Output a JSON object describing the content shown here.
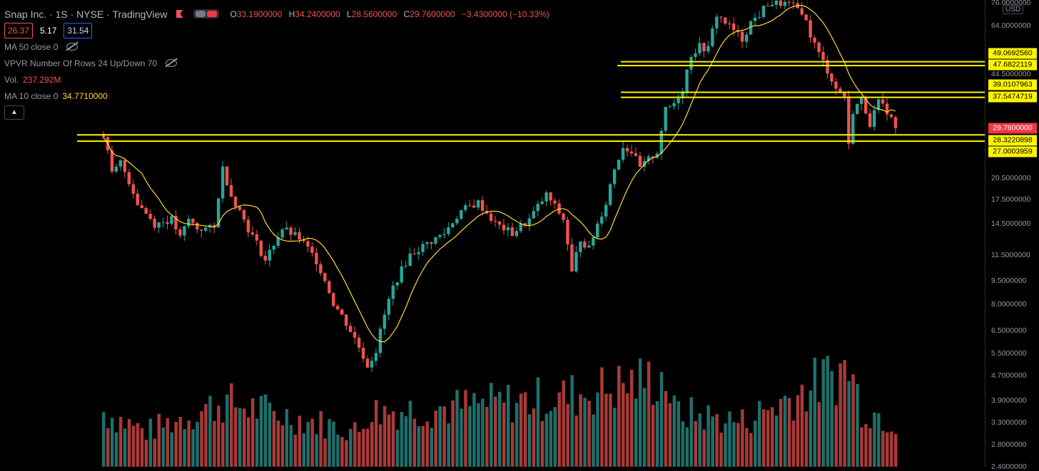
{
  "header": {
    "title": "Snap Inc. · 1S · NYSE · TradingView",
    "ohlc": {
      "o_label": "O",
      "o_value": "33.1900000",
      "h_label": "H",
      "h_value": "34.2400000",
      "l_label": "L",
      "l_value": "28.5600000",
      "c_label": "C",
      "c_value": "29.7600000",
      "change": "−3.4300000 (−10.33%)"
    }
  },
  "trade": {
    "sell": "26.37",
    "spread": "5.17",
    "buy": "31.54"
  },
  "indicators": {
    "ma50": "MA 50 close 0",
    "vpvr": "VPVR Number Of Rows 24 Up/Down 70",
    "vol_label": "Vol.",
    "vol_value": "237.292M",
    "ma10_label": "MA 10 close 0",
    "ma10_value": "34.7710000",
    "collapse_icon": "chevron-up-icon"
  },
  "axis": {
    "currency": "USD",
    "ticks": [
      "76.0000000",
      "64.0000000",
      "44.5000000",
      "20.5000000",
      "17.5000000",
      "14.5000000",
      "11.5000000",
      "9.5000000",
      "8.0000000",
      "6.5000000",
      "5.5000000",
      "4.7000000",
      "3.9000000",
      "3.3000000",
      "2.8000000",
      "2.4000000"
    ],
    "price_labels": [
      "49.0692560",
      "47.6822119",
      "39.0107963",
      "37.5474719",
      "29.7600000",
      "28.3220898",
      "27.0003959"
    ]
  },
  "colors": {
    "up": "#26a69a",
    "down": "#ef5350",
    "ma": "#fdd835",
    "level": "#fdf400",
    "background": "#000000"
  },
  "chart_data": {
    "type": "candlestick",
    "scale": "log",
    "y_range": [
      2.4,
      76
    ],
    "last_close": 29.76,
    "support_resistance": [
      49.069256,
      47.6822119,
      39.0107963,
      37.5474719,
      28.3220898,
      27.0003959
    ],
    "price_path": [
      [
        0,
        28.5
      ],
      [
        2,
        21
      ],
      [
        4,
        23
      ],
      [
        8,
        17
      ],
      [
        12,
        14.5
      ],
      [
        16,
        15
      ],
      [
        18,
        13
      ],
      [
        20,
        15
      ],
      [
        22,
        14
      ],
      [
        26,
        14
      ],
      [
        28,
        22
      ],
      [
        30,
        18
      ],
      [
        34,
        14
      ],
      [
        38,
        11
      ],
      [
        42,
        14
      ],
      [
        46,
        13
      ],
      [
        50,
        11
      ],
      [
        54,
        8
      ],
      [
        58,
        6.5
      ],
      [
        62,
        5
      ],
      [
        64,
        5.6
      ],
      [
        68,
        9
      ],
      [
        72,
        11.5
      ],
      [
        76,
        12.5
      ],
      [
        80,
        13.5
      ],
      [
        84,
        16
      ],
      [
        88,
        17
      ],
      [
        92,
        14.5
      ],
      [
        96,
        13.5
      ],
      [
        100,
        15
      ],
      [
        104,
        18
      ],
      [
        108,
        15
      ],
      [
        110,
        10
      ],
      [
        112,
        13
      ],
      [
        114,
        12
      ],
      [
        118,
        17
      ],
      [
        120,
        22
      ],
      [
        122,
        26
      ],
      [
        124,
        25
      ],
      [
        126,
        22
      ],
      [
        130,
        25
      ],
      [
        132,
        34
      ],
      [
        134,
        36
      ],
      [
        136,
        40
      ],
      [
        138,
        52
      ],
      [
        140,
        55
      ],
      [
        142,
        54
      ],
      [
        144,
        70
      ],
      [
        148,
        62
      ],
      [
        150,
        58
      ],
      [
        152,
        66
      ],
      [
        154,
        70
      ],
      [
        156,
        76
      ],
      [
        160,
        76
      ],
      [
        164,
        72
      ],
      [
        166,
        60
      ],
      [
        168,
        52
      ],
      [
        170,
        46
      ],
      [
        172,
        40
      ],
      [
        174,
        38
      ],
      [
        175,
        26
      ],
      [
        176,
        34
      ],
      [
        178,
        37
      ],
      [
        180,
        31
      ],
      [
        182,
        36
      ],
      [
        184,
        34
      ],
      [
        186,
        29.76
      ]
    ],
    "volume_path": [
      [
        0,
        0.55
      ],
      [
        10,
        0.35
      ],
      [
        28,
        0.65
      ],
      [
        60,
        0.35
      ],
      [
        62,
        0.55
      ],
      [
        84,
        0.6
      ],
      [
        108,
        0.7
      ],
      [
        132,
        0.9
      ],
      [
        134,
        0.55
      ],
      [
        150,
        0.45
      ],
      [
        175,
        1.0
      ],
      [
        178,
        0.6
      ],
      [
        186,
        0.45
      ]
    ]
  }
}
